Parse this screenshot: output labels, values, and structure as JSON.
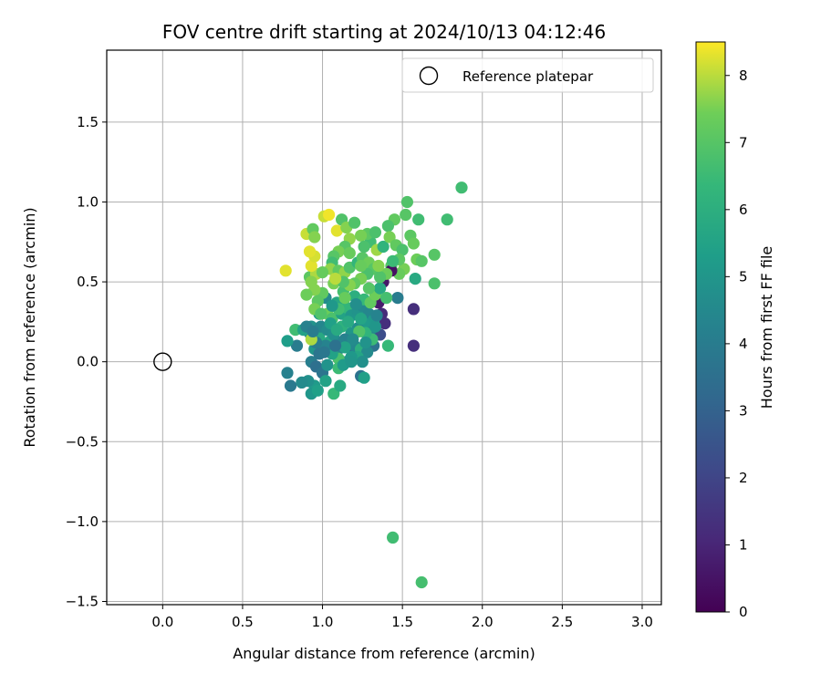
{
  "chart_data": {
    "type": "scatter",
    "title": "FOV centre drift starting at 2024/10/13 04:12:46",
    "xlabel": "Angular distance from reference (arcmin)",
    "ylabel": "Rotation from reference (arcmin)",
    "xlim": [
      -0.35,
      3.12
    ],
    "ylim": [
      -1.52,
      1.95
    ],
    "xticks": [
      0.0,
      0.5,
      1.0,
      1.5,
      2.0,
      2.5,
      3.0
    ],
    "xtick_labels": [
      "0.0",
      "0.5",
      "1.0",
      "1.5",
      "2.0",
      "2.5",
      "3.0"
    ],
    "yticks": [
      -1.5,
      -1.0,
      -0.5,
      0.0,
      0.5,
      1.0,
      1.5
    ],
    "ytick_labels": [
      "−1.5",
      "−1.0",
      "−0.5",
      "0.0",
      "0.5",
      "1.0",
      "1.5"
    ],
    "grid": true,
    "legend": {
      "position": "top-right",
      "entries": [
        "Reference platepar"
      ]
    },
    "reference_point": {
      "x": 0.0,
      "y": 0.0
    },
    "colorbar": {
      "label": "Hours from first FF file",
      "min": 0,
      "max": 8.5,
      "ticks": [
        0,
        1,
        2,
        3,
        4,
        5,
        6,
        7,
        8
      ],
      "tick_labels": [
        "0",
        "1",
        "2",
        "3",
        "4",
        "5",
        "6",
        "7",
        "8"
      ],
      "colormap": "viridis"
    },
    "points": [
      [
        1.87,
        1.09,
        6.6
      ],
      [
        1.78,
        0.89,
        6.6
      ],
      [
        1.53,
        1.0,
        6.9
      ],
      [
        1.45,
        0.89,
        7.2
      ],
      [
        1.6,
        0.89,
        6.6
      ],
      [
        1.41,
        0.85,
        6.8
      ],
      [
        1.52,
        0.92,
        7.0
      ],
      [
        1.55,
        0.79,
        7.1
      ],
      [
        1.57,
        0.74,
        7.3
      ],
      [
        1.7,
        0.67,
        7.0
      ],
      [
        1.59,
        0.64,
        7.4
      ],
      [
        1.62,
        0.63,
        7.0
      ],
      [
        1.51,
        0.58,
        7.5
      ],
      [
        1.43,
        0.6,
        7.0
      ],
      [
        1.48,
        0.55,
        7.3
      ],
      [
        1.7,
        0.49,
        6.8
      ],
      [
        1.58,
        0.52,
        5.8
      ],
      [
        1.57,
        0.33,
        1.3
      ],
      [
        1.57,
        0.1,
        1.3
      ],
      [
        1.47,
        0.4,
        4.0
      ],
      [
        1.43,
        0.57,
        0.4
      ],
      [
        1.38,
        0.5,
        0.6
      ],
      [
        1.35,
        0.37,
        0.7
      ],
      [
        1.37,
        0.3,
        1.2
      ],
      [
        1.39,
        0.24,
        1.3
      ],
      [
        1.36,
        0.17,
        2.3
      ],
      [
        1.3,
        0.2,
        4.3
      ],
      [
        1.32,
        0.1,
        3.6
      ],
      [
        1.24,
        -0.09,
        3.6
      ],
      [
        1.26,
        -0.1,
        5.4
      ],
      [
        1.2,
        0.05,
        3.0
      ],
      [
        1.15,
        0.0,
        4.7
      ],
      [
        1.1,
        0.08,
        4.4
      ],
      [
        1.05,
        0.13,
        5.6
      ],
      [
        1.0,
        0.2,
        6.0
      ],
      [
        0.98,
        0.15,
        5.8
      ],
      [
        0.95,
        0.08,
        5.0
      ],
      [
        0.92,
        0.18,
        4.6
      ],
      [
        0.93,
        0.0,
        4.1
      ],
      [
        0.96,
        -0.03,
        3.5
      ],
      [
        1.0,
        -0.07,
        3.7
      ],
      [
        0.95,
        -0.15,
        5.2
      ],
      [
        0.93,
        -0.2,
        5.0
      ],
      [
        0.97,
        -0.18,
        5.4
      ],
      [
        1.07,
        -0.2,
        6.4
      ],
      [
        1.11,
        -0.15,
        5.8
      ],
      [
        0.91,
        -0.12,
        4.8
      ],
      [
        0.87,
        -0.13,
        4.6
      ],
      [
        0.8,
        -0.15,
        3.9
      ],
      [
        0.78,
        -0.07,
        4.2
      ],
      [
        0.84,
        0.1,
        4.0
      ],
      [
        0.78,
        0.13,
        5.3
      ],
      [
        0.83,
        0.2,
        6.6
      ],
      [
        0.88,
        0.2,
        5.5
      ],
      [
        0.93,
        0.22,
        4.9
      ],
      [
        0.98,
        0.3,
        5.2
      ],
      [
        1.03,
        0.3,
        7.4
      ],
      [
        1.06,
        0.27,
        6.8
      ],
      [
        1.02,
        0.4,
        4.6
      ],
      [
        1.09,
        0.37,
        5.7
      ],
      [
        1.12,
        0.3,
        5.5
      ],
      [
        1.15,
        0.34,
        6.3
      ],
      [
        1.18,
        0.29,
        5.0
      ],
      [
        1.22,
        0.32,
        4.9
      ],
      [
        1.25,
        0.35,
        4.5
      ],
      [
        1.29,
        0.3,
        4.4
      ],
      [
        1.32,
        0.26,
        5.1
      ],
      [
        1.26,
        0.24,
        5.2
      ],
      [
        1.22,
        0.21,
        4.7
      ],
      [
        1.18,
        0.18,
        5.0
      ],
      [
        1.14,
        0.14,
        4.2
      ],
      [
        1.1,
        0.12,
        4.3
      ],
      [
        1.12,
        0.22,
        6.1
      ],
      [
        1.16,
        0.25,
        5.8
      ],
      [
        1.2,
        0.1,
        4.4
      ],
      [
        1.24,
        0.08,
        6.0
      ],
      [
        1.28,
        0.06,
        4.6
      ],
      [
        1.31,
        0.14,
        6.5
      ],
      [
        1.27,
        0.18,
        6.2
      ],
      [
        1.33,
        0.22,
        5.0
      ],
      [
        1.23,
        0.19,
        6.9
      ],
      [
        1.41,
        0.1,
        6.4
      ],
      [
        1.22,
        0.03,
        5.6
      ],
      [
        1.18,
        0.03,
        5.1
      ],
      [
        1.25,
        0.0,
        4.8
      ],
      [
        1.1,
        0.02,
        6.8
      ],
      [
        1.06,
        0.05,
        5.5
      ],
      [
        1.03,
        -0.02,
        4.9
      ],
      [
        1.02,
        0.1,
        4.3
      ],
      [
        0.98,
        0.05,
        3.7
      ],
      [
        0.96,
        0.12,
        4.0
      ],
      [
        0.93,
        0.14,
        7.9
      ],
      [
        0.9,
        0.22,
        4.2
      ],
      [
        0.99,
        0.22,
        4.4
      ],
      [
        1.03,
        0.2,
        4.6
      ],
      [
        1.07,
        0.17,
        4.7
      ],
      [
        1.1,
        -0.04,
        6.5
      ],
      [
        1.13,
        -0.02,
        5.2
      ],
      [
        1.18,
        0.0,
        5.0
      ],
      [
        1.05,
        0.24,
        5.4
      ],
      [
        1.2,
        0.41,
        6.0
      ],
      [
        1.26,
        0.39,
        6.4
      ],
      [
        1.3,
        0.37,
        7.2
      ],
      [
        1.33,
        0.42,
        7.4
      ],
      [
        1.36,
        0.46,
        5.8
      ],
      [
        1.4,
        0.4,
        6.7
      ],
      [
        1.13,
        0.44,
        6.7
      ],
      [
        1.07,
        0.49,
        7.5
      ],
      [
        1.0,
        0.43,
        7.2
      ],
      [
        0.95,
        0.45,
        7.6
      ],
      [
        0.92,
        0.53,
        7.1
      ],
      [
        0.96,
        0.55,
        7.9
      ],
      [
        0.93,
        0.6,
        8.3
      ],
      [
        0.95,
        0.66,
        8.2
      ],
      [
        0.92,
        0.69,
        8.3
      ],
      [
        0.77,
        0.57,
        8.3
      ],
      [
        0.9,
        0.8,
        8.1
      ],
      [
        0.94,
        0.83,
        7.2
      ],
      [
        0.95,
        0.78,
        7.6
      ],
      [
        1.01,
        0.91,
        8.1
      ],
      [
        1.04,
        0.92,
        8.4
      ],
      [
        1.09,
        0.82,
        8.3
      ],
      [
        1.12,
        0.89,
        6.9
      ],
      [
        1.15,
        0.84,
        7.6
      ],
      [
        1.2,
        0.87,
        6.9
      ],
      [
        1.17,
        0.77,
        7.7
      ],
      [
        1.14,
        0.72,
        7.0
      ],
      [
        1.1,
        0.69,
        7.5
      ],
      [
        1.07,
        0.66,
        7.0
      ],
      [
        1.06,
        0.62,
        6.6
      ],
      [
        1.05,
        0.58,
        7.7
      ],
      [
        1.1,
        0.57,
        7.2
      ],
      [
        1.14,
        0.56,
        7.7
      ],
      [
        1.17,
        0.59,
        6.9
      ],
      [
        1.22,
        0.62,
        6.3
      ],
      [
        1.25,
        0.65,
        7.0
      ],
      [
        1.29,
        0.62,
        7.4
      ],
      [
        1.32,
        0.58,
        7.0
      ],
      [
        1.28,
        0.55,
        6.8
      ],
      [
        1.24,
        0.52,
        7.5
      ],
      [
        1.2,
        0.49,
        7.2
      ],
      [
        1.17,
        0.48,
        7.6
      ],
      [
        1.13,
        0.5,
        6.9
      ],
      [
        1.08,
        0.52,
        8.0
      ],
      [
        1.0,
        0.56,
        7.3
      ],
      [
        0.93,
        0.5,
        7.6
      ],
      [
        0.9,
        0.42,
        7.4
      ],
      [
        0.97,
        0.38,
        7.1
      ],
      [
        0.95,
        0.33,
        7.5
      ],
      [
        0.99,
        0.3,
        6.9
      ],
      [
        1.1,
        0.33,
        6.6
      ],
      [
        1.14,
        0.4,
        7.3
      ],
      [
        1.24,
        0.6,
        7.3
      ],
      [
        1.3,
        0.75,
        6.6
      ],
      [
        1.28,
        0.8,
        7.1
      ],
      [
        1.24,
        0.79,
        7.5
      ],
      [
        1.33,
        0.81,
        6.8
      ],
      [
        1.34,
        0.7,
        7.8
      ],
      [
        1.38,
        0.72,
        6.2
      ],
      [
        1.42,
        0.78,
        7.5
      ],
      [
        1.46,
        0.73,
        7.2
      ],
      [
        1.5,
        0.7,
        6.8
      ],
      [
        1.48,
        0.64,
        7.1
      ],
      [
        1.44,
        0.63,
        6.5
      ],
      [
        1.4,
        0.55,
        7.4
      ],
      [
        1.36,
        0.53,
        6.9
      ],
      [
        1.35,
        0.6,
        7.6
      ],
      [
        1.26,
        0.72,
        6.8
      ],
      [
        1.17,
        0.68,
        7.3
      ],
      [
        1.44,
        -1.1,
        6.6
      ],
      [
        1.62,
        -1.38,
        6.7
      ],
      [
        1.21,
        0.36,
        4.7
      ],
      [
        1.24,
        0.27,
        5.6
      ],
      [
        1.19,
        0.14,
        4.6
      ],
      [
        1.27,
        0.12,
        4.9
      ],
      [
        1.09,
        0.2,
        5.8
      ],
      [
        1.29,
        0.46,
        7.0
      ],
      [
        1.34,
        0.29,
        4.3
      ],
      [
        1.14,
        0.09,
        5.5
      ],
      [
        1.08,
        0.1,
        3.6
      ],
      [
        1.01,
        0.06,
        3.8
      ],
      [
        1.06,
        0.35,
        5.1
      ],
      [
        1.02,
        -0.12,
        5.5
      ],
      [
        0.94,
        0.19,
        4.0
      ]
    ]
  }
}
